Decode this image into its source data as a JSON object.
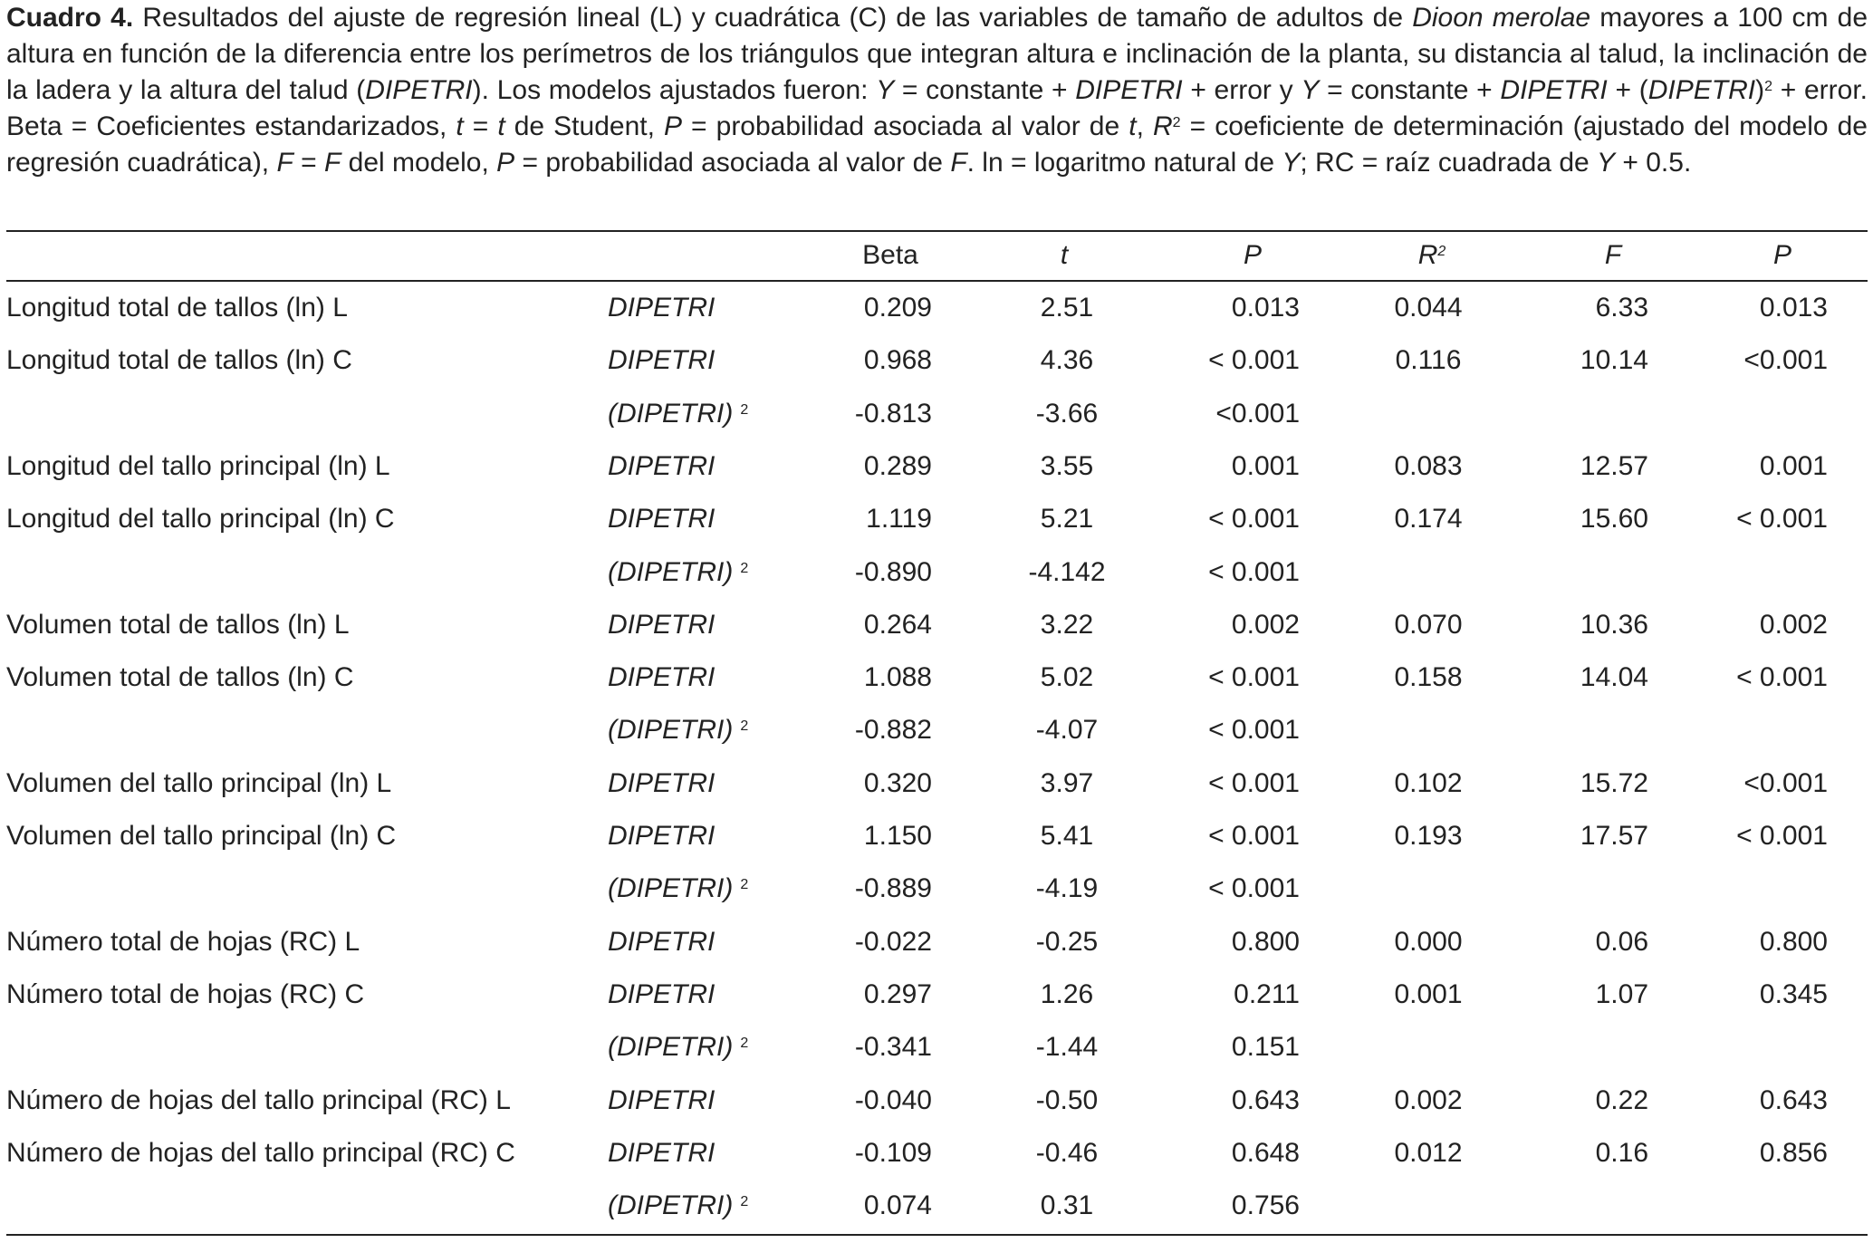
{
  "caption": [
    "Cuadro 4.",
    " Resultados del ajuste de regresión lineal (L) y cuadrática (C) de las variables de tamaño de adultos de ",
    "Dioon merolae",
    " mayores a 100 cm de altura en función de la diferencia entre los perímetros de los triángulos que integran altura e inclinación de la planta, su distancia al talud, la inclinación de la ladera y la altura del talud (",
    "DIPETRI",
    "). Los modelos ajustados fueron: ",
    "Y",
    " = constante + ",
    "DIPETRI",
    " + error y ",
    "Y",
    " = constante + ",
    "DIPETRI",
    " + (",
    "DIPETRI",
    ")",
    "2",
    " + error. Beta = Coeficientes estandarizados, ",
    "t",
    " = ",
    "t",
    " de Student, ",
    "P",
    " = probabilidad asociada al valor de ",
    "t",
    ", ",
    "R",
    "2",
    " = coeficiente de determinación (ajustado del modelo de regresión cuadrática), ",
    "F",
    " = ",
    "F",
    " del modelo, ",
    "P",
    " = probabilidad asociada al valor de ",
    "F",
    ". ln = logaritmo natural de ",
    "Y",
    "; RC = raíz cuadrada de ",
    "Y",
    " + 0.5."
  ],
  "table": {
    "columns": [
      "Beta",
      "t",
      "P",
      "R",
      "F",
      "P"
    ],
    "r2_superscript": "2",
    "rows": [
      [
        "Longitud total de tallos (ln) L",
        "DIPETRI",
        null,
        "0.209",
        "2.51",
        "0.013",
        "0.044",
        "6.33",
        "0.013"
      ],
      [
        "Longitud total de tallos (ln) C",
        "DIPETRI",
        null,
        "0.968",
        "4.36",
        "< 0.001",
        "0.116",
        "10.14",
        "<0.001"
      ],
      [
        null,
        "(DIPETRI)",
        "2",
        "-0.813",
        "-3.66",
        "<0.001",
        null,
        null,
        null
      ],
      [
        "Longitud del tallo principal (ln) L",
        "DIPETRI",
        null,
        "0.289",
        "3.55",
        "0.001",
        "0.083",
        "12.57",
        "0.001"
      ],
      [
        "Longitud del tallo principal (ln) C",
        "DIPETRI",
        null,
        "1.119",
        "5.21",
        "< 0.001",
        "0.174",
        "15.60",
        "< 0.001"
      ],
      [
        null,
        "(DIPETRI)",
        "2",
        "-0.890",
        "-4.142",
        "< 0.001",
        null,
        null,
        null
      ],
      [
        "Volumen total de tallos (ln) L",
        "DIPETRI",
        null,
        "0.264",
        "3.22",
        "0.002",
        "0.070",
        "10.36",
        "0.002"
      ],
      [
        "Volumen total de tallos (ln) C",
        "DIPETRI",
        null,
        "1.088",
        "5.02",
        "< 0.001",
        "0.158",
        "14.04",
        "< 0.001"
      ],
      [
        null,
        "(DIPETRI)",
        "2",
        "-0.882",
        "-4.07",
        "< 0.001",
        null,
        null,
        null
      ],
      [
        "Volumen del tallo principal (ln) L",
        "DIPETRI",
        null,
        "0.320",
        "3.97",
        "< 0.001",
        "0.102",
        "15.72",
        "<0.001"
      ],
      [
        "Volumen del tallo principal (ln) C",
        "DIPETRI",
        null,
        "1.150",
        "5.41",
        "< 0.001",
        "0.193",
        "17.57",
        "< 0.001"
      ],
      [
        null,
        "(DIPETRI)",
        "2",
        "-0.889",
        "-4.19",
        "< 0.001",
        null,
        null,
        null
      ],
      [
        "Número total de hojas (RC) L",
        "DIPETRI",
        null,
        "-0.022",
        "-0.25",
        "0.800",
        "0.000",
        "0.06",
        "0.800"
      ],
      [
        "Número total de hojas (RC) C",
        "DIPETRI",
        null,
        "0.297",
        "1.26",
        "0.211",
        "0.001",
        "1.07",
        "0.345"
      ],
      [
        null,
        "(DIPETRI)",
        "2",
        "-0.341",
        "-1.44",
        "0.151",
        null,
        null,
        null
      ],
      [
        "Número de hojas del tallo principal (RC) L",
        "DIPETRI",
        null,
        "-0.040",
        "-0.50",
        "0.643",
        "0.002",
        "0.22",
        "0.643"
      ],
      [
        "Número de hojas del tallo principal (RC) C",
        "DIPETRI",
        null,
        "-0.109",
        "-0.46",
        "0.648",
        "0.012",
        "0.16",
        "0.856"
      ],
      [
        null,
        "(DIPETRI)",
        "2",
        "0.074",
        "0.31",
        "0.756",
        null,
        null,
        null
      ]
    ]
  }
}
